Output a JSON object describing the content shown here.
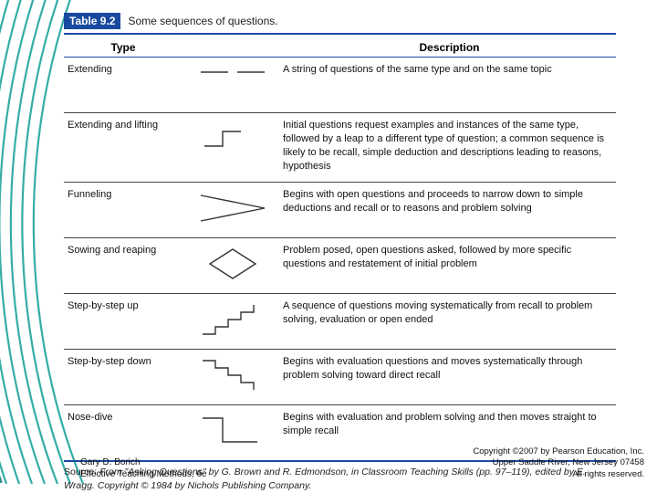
{
  "colors": {
    "accent": "#1a4aa0",
    "teal": "#2aa9a2",
    "text": "#111111",
    "background": "#ffffff"
  },
  "table": {
    "number": "Table 9.2",
    "caption": "Some sequences of questions.",
    "columns": {
      "type": "Type",
      "description": "Description"
    },
    "rows": [
      {
        "type": "Extending",
        "glyph": "extending",
        "description": "A string of questions of the same type and on the same topic"
      },
      {
        "type": "Extending and lifting",
        "glyph": "extending-lifting",
        "description": "Initial questions request examples and instances of the same type, followed by a leap to a different type of question; a common sequence is likely to be recall, simple deduction and descriptions leading to reasons, hypothesis"
      },
      {
        "type": "Funneling",
        "glyph": "funneling",
        "description": "Begins with open questions and proceeds to narrow down to simple deductions and recall or to reasons and problem solving"
      },
      {
        "type": "Sowing and reaping",
        "glyph": "sowing-reaping",
        "description": "Problem posed, open questions asked, followed by more specific questions and restatement of initial problem"
      },
      {
        "type": "Step-by-step up",
        "glyph": "step-up",
        "description": "A sequence of questions moving systematically from recall to problem solving, evaluation or open ended"
      },
      {
        "type": "Step-by-step down",
        "glyph": "step-down",
        "description": "Begins with evaluation questions and moves systematically through problem solving toward direct recall"
      },
      {
        "type": "Nose-dive",
        "glyph": "nose-dive",
        "description": "Begins with evaluation and problem solving and then moves straight to simple recall"
      }
    ],
    "source": "Source: From \"Asking Questions\" by G. Brown and R. Edmondson, in Classroom Teaching Skills (pp. 97–119), edited by E. Wragg. Copyright © 1984 by Nichols Publishing Company."
  },
  "footer": {
    "left_line1": "Gary D. Borich",
    "left_line2": "Effective Teaching Methods, 6e",
    "right_line1": "Copyright ©2007 by Pearson Education, Inc.",
    "right_line2": "Upper Saddle River, New Jersey 07458",
    "right_line3": "All rights reserved."
  },
  "glyph_style": {
    "stroke": "#333333",
    "stroke_width": 1.4
  }
}
